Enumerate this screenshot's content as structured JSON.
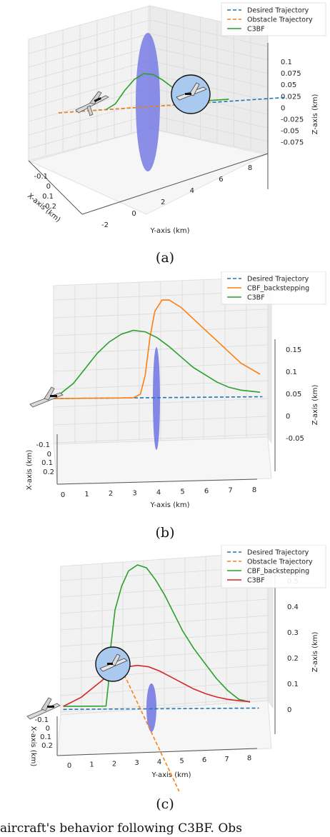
{
  "colors": {
    "desired": "#1f77b4",
    "obstacle": "#ff7f0e",
    "c3bf": "#2ca02c",
    "cbf_backstepping": "#ff7f0e",
    "c3bf_red": "#d62728",
    "obstacle_ellipse": "#6f74e4",
    "obstacle_circle": "#a9c9ef"
  },
  "icons": [
    "aircraft-icon",
    "aircraft-in-circle-icon"
  ],
  "captions": {
    "a": "(a)",
    "b": "(b)",
    "c": "(c)"
  },
  "bottom_text": "aircraft's behavior following C3BF. Obs",
  "chart_data": [
    {
      "type": "line",
      "panel": "a",
      "projection": "3d",
      "legend_position": "top-right",
      "grid": true,
      "xlabel": "X-axis (km)",
      "ylabel": "Y-axis (km)",
      "zlabel": "Z-axis (km)",
      "x_ticks": [
        "-0.1",
        "0",
        "0.1",
        "0.2"
      ],
      "y_ticks": [
        "-2",
        "0",
        "2",
        "4",
        "6",
        "8"
      ],
      "z_ticks": [
        "0.1",
        "0.075",
        "0.05",
        "0.025",
        "0",
        "-0.025",
        "-0.05",
        "-0.075"
      ],
      "ylim": [
        -3,
        9
      ],
      "zlim": [
        -0.09,
        0.12
      ],
      "series": [
        {
          "name": "Desired Trajectory",
          "style": "dashed",
          "color": "#1f77b4",
          "y": [
            -4,
            -2,
            0,
            2,
            4,
            6,
            8
          ],
          "z": [
            0.05,
            0.05,
            0.05,
            0.05,
            0.05,
            0.05,
            0.05
          ]
        },
        {
          "name": "Obstacle Trajectory",
          "style": "dashed",
          "color": "#ff7f0e",
          "y": [
            -4,
            -2,
            0,
            2,
            4
          ],
          "z": [
            0.05,
            0.05,
            0.05,
            0.05,
            0.05
          ]
        },
        {
          "name": "C3BF",
          "style": "solid",
          "color": "#2ca02c",
          "y": [
            -1.5,
            -1,
            -0.5,
            0,
            0.5,
            1,
            1.5,
            2,
            2.5,
            3,
            3.5,
            4,
            5
          ],
          "z": [
            0.05,
            0.06,
            0.085,
            0.105,
            0.115,
            0.112,
            0.1,
            0.085,
            0.072,
            0.062,
            0.056,
            0.054,
            0.054
          ]
        }
      ]
    },
    {
      "type": "line",
      "panel": "b",
      "projection": "3d",
      "legend_position": "top-right",
      "grid": true,
      "xlabel": "X-axis (km)",
      "ylabel": "Y-axis (km)",
      "zlabel": "Z-axis (km)",
      "x_ticks": [
        "-0.1",
        "0",
        "0.1",
        "0.2"
      ],
      "y_ticks": [
        "0",
        "1",
        "2",
        "3",
        "4",
        "5",
        "6",
        "7",
        "8"
      ],
      "z_ticks": [
        "0.15",
        "0.1",
        "0.05",
        "0",
        "-0.05"
      ],
      "ylim": [
        -0.3,
        8.5
      ],
      "zlim": [
        -0.08,
        0.2
      ],
      "series": [
        {
          "name": "Desired Trajectory",
          "style": "dashed",
          "color": "#1f77b4",
          "y": [
            -0.3,
            1,
            2,
            3,
            4,
            5,
            6,
            7,
            8.4
          ],
          "z": [
            0.07,
            0.07,
            0.07,
            0.07,
            0.07,
            0.07,
            0.07,
            0.07,
            0.07
          ]
        },
        {
          "name": "CBF_backstepping",
          "style": "solid",
          "color": "#ff7f0e",
          "y": [
            -0.3,
            1,
            2,
            3,
            3.3,
            3.5,
            3.7,
            3.9,
            4.2,
            4.5,
            5,
            5.5,
            6,
            6.5,
            7,
            7.5,
            8.3
          ],
          "z": [
            0.07,
            0.07,
            0.07,
            0.07,
            0.075,
            0.1,
            0.15,
            0.185,
            0.2,
            0.2,
            0.19,
            0.175,
            0.16,
            0.145,
            0.13,
            0.115,
            0.1
          ]
        },
        {
          "name": "C3BF",
          "style": "solid",
          "color": "#2ca02c",
          "y": [
            -0.3,
            0.5,
            1,
            1.5,
            2,
            2.5,
            3,
            3.5,
            4,
            4.5,
            5,
            5.5,
            6,
            6.5,
            7,
            7.5,
            8.3
          ],
          "z": [
            0.07,
            0.09,
            0.11,
            0.13,
            0.145,
            0.155,
            0.16,
            0.158,
            0.15,
            0.138,
            0.124,
            0.11,
            0.1,
            0.09,
            0.083,
            0.079,
            0.076
          ]
        }
      ]
    },
    {
      "type": "line",
      "panel": "c",
      "projection": "3d",
      "legend_position": "top-right",
      "grid": true,
      "xlabel": "X-axis (km)",
      "ylabel": "Y-axis (km)",
      "zlabel": "Z-axis (km)",
      "x_ticks": [
        "-0.1",
        "0",
        "0.1",
        "0.2"
      ],
      "y_ticks": [
        "0",
        "1",
        "2",
        "3",
        "4",
        "5",
        "6",
        "7",
        "8"
      ],
      "z_ticks": [
        "0.5",
        "0.4",
        "0.3",
        "0.2",
        "0.1",
        "0"
      ],
      "ylim": [
        -0.3,
        8.5
      ],
      "zlim": [
        -0.05,
        0.6
      ],
      "series": [
        {
          "name": "Desired Trajectory",
          "style": "dashed",
          "color": "#1f77b4",
          "y": [
            -0.3,
            1,
            2,
            3,
            4,
            5,
            6,
            7,
            8.4
          ],
          "z": [
            0.1,
            0.1,
            0.1,
            0.1,
            0.1,
            0.1,
            0.1,
            0.1,
            0.1
          ]
        },
        {
          "name": "Obstacle Trajectory",
          "style": "dashed",
          "color": "#ff7f0e",
          "y": [
            1.9,
            2.5,
            3,
            3.5,
            4,
            4.5,
            5
          ],
          "z": [
            0.28,
            0.2,
            0.12,
            0.04,
            -0.04,
            -0.12,
            -0.2
          ]
        },
        {
          "name": "CBF_backstepping",
          "style": "solid",
          "color": "#2ca02c",
          "y": [
            -0.3,
            1,
            1.6,
            1.7,
            1.8,
            2,
            2.3,
            2.6,
            3,
            3.4,
            3.8,
            4.2,
            4.6,
            5,
            5.5,
            6,
            6.5,
            7,
            7.5,
            8
          ],
          "z": [
            0.11,
            0.11,
            0.11,
            0.18,
            0.3,
            0.43,
            0.51,
            0.56,
            0.58,
            0.57,
            0.53,
            0.48,
            0.42,
            0.36,
            0.3,
            0.25,
            0.2,
            0.16,
            0.13,
            0.12
          ]
        },
        {
          "name": "C3BF",
          "style": "solid",
          "color": "#d62728",
          "y": [
            -0.3,
            0.5,
            1,
            1.5,
            2,
            2.5,
            3,
            3.5,
            4,
            4.5,
            5,
            5.5,
            6,
            6.5,
            7,
            7.5,
            8
          ],
          "z": [
            0.11,
            0.14,
            0.17,
            0.2,
            0.225,
            0.24,
            0.245,
            0.24,
            0.225,
            0.205,
            0.185,
            0.165,
            0.15,
            0.138,
            0.13,
            0.125,
            0.122
          ]
        }
      ]
    }
  ]
}
